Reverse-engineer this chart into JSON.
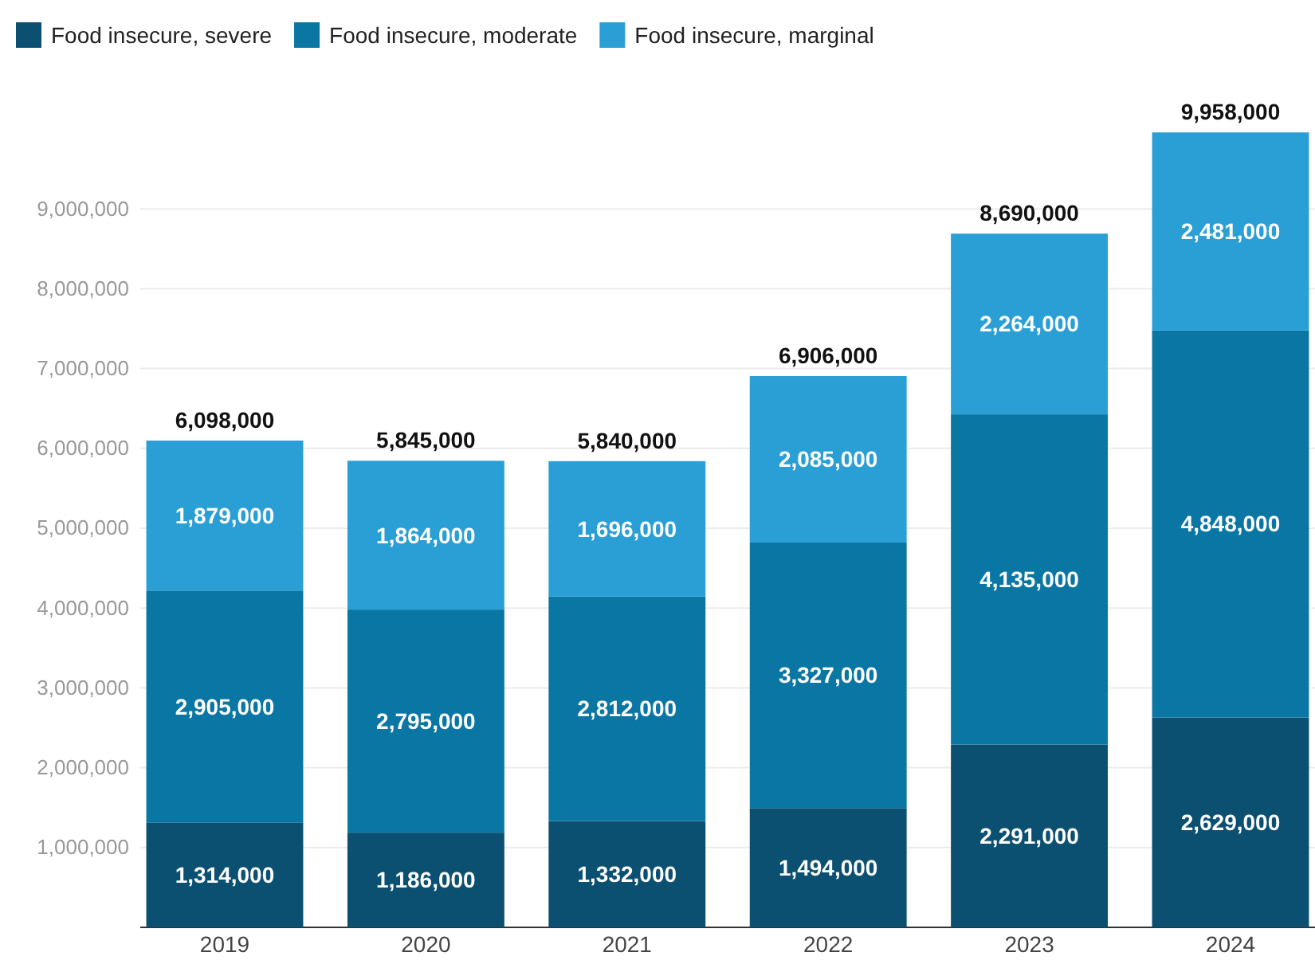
{
  "chart_data": {
    "type": "bar",
    "stacked": true,
    "categories": [
      "2019",
      "2020",
      "2021",
      "2022",
      "2023",
      "2024"
    ],
    "series": [
      {
        "name": "Food insecure, severe",
        "color": "#0b4f71",
        "values": [
          1314000,
          1186000,
          1332000,
          1494000,
          2291000,
          2629000
        ],
        "value_labels": [
          "1,314,000",
          "1,186,000",
          "1,332,000",
          "1,494,000",
          "2,291,000",
          "2,629,000"
        ]
      },
      {
        "name": "Food insecure, moderate",
        "color": "#0a76a3",
        "values": [
          2905000,
          2795000,
          2812000,
          3327000,
          4135000,
          4848000
        ],
        "value_labels": [
          "2,905,000",
          "2,795,000",
          "2,812,000",
          "3,327,000",
          "4,135,000",
          "4,848,000"
        ]
      },
      {
        "name": "Food insecure, marginal",
        "color": "#2a9fd6",
        "values": [
          1879000,
          1864000,
          1696000,
          2085000,
          2264000,
          2481000
        ],
        "value_labels": [
          "1,879,000",
          "1,864,000",
          "1,696,000",
          "2,085,000",
          "2,264,000",
          "2,481,000"
        ]
      }
    ],
    "ylim": [
      0,
      10000000
    ],
    "yticks": [
      {
        "value": 1000000,
        "label": "1,000,000"
      },
      {
        "value": 2000000,
        "label": "2,000,000"
      },
      {
        "value": 3000000,
        "label": "3,000,000"
      },
      {
        "value": 4000000,
        "label": "4,000,000"
      },
      {
        "value": 5000000,
        "label": "5,000,000"
      },
      {
        "value": 6000000,
        "label": "6,000,000"
      },
      {
        "value": 7000000,
        "label": "7,000,000"
      },
      {
        "value": 8000000,
        "label": "8,000,000"
      },
      {
        "value": 9000000,
        "label": "9,000,000"
      }
    ],
    "grid": "y",
    "legend": "top left",
    "totals": [
      "6,098,000",
      "5,845,000",
      "5,840,000",
      "6,906,000",
      "8,690,000",
      "9,958,000"
    ]
  }
}
